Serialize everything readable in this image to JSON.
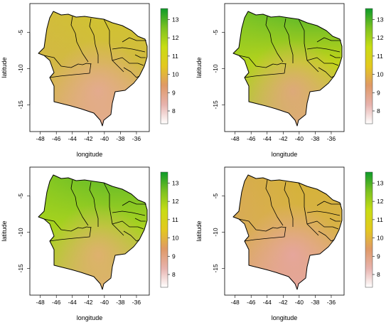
{
  "panels": [
    {
      "id": "panel-1",
      "xlabel": "longitude",
      "ylabel": "latitude",
      "x_ticks": [
        "-48",
        "-46",
        "-44",
        "-42",
        "-40",
        "-38",
        "-36"
      ],
      "y_ticks": [
        "-5",
        "-10",
        "-15"
      ],
      "legend_ticks": [
        "13",
        "12",
        "11",
        "10",
        "9",
        "8"
      ],
      "colors": {
        "north": "#d0c42e",
        "west": "#d2b548",
        "south": "#e4aa90",
        "east": "#d2bb40"
      }
    },
    {
      "id": "panel-2",
      "xlabel": "longitude",
      "ylabel": "latitude",
      "x_ticks": [
        "-48",
        "-46",
        "-44",
        "-42",
        "-40",
        "-38",
        "-36"
      ],
      "y_ticks": [
        "-5",
        "-10",
        "-15"
      ],
      "legend_ticks": [
        "13",
        "12",
        "11",
        "10",
        "9",
        "8"
      ],
      "colors": {
        "north": "#58b82a",
        "west": "#9ccf22",
        "south": "#dea87c",
        "east": "#c2d41a"
      }
    },
    {
      "id": "panel-3",
      "xlabel": "longitude",
      "ylabel": "latitude",
      "x_ticks": [
        "-48",
        "-46",
        "-44",
        "-42",
        "-40",
        "-38",
        "-36"
      ],
      "y_ticks": [
        "-5",
        "-10",
        "-15"
      ],
      "legend_ticks": [
        "13",
        "12",
        "11",
        "10",
        "9",
        "8"
      ],
      "colors": {
        "north": "#62bb28",
        "west": "#a6d31c",
        "south": "#e0b070",
        "east": "#a8d220"
      }
    },
    {
      "id": "panel-4",
      "xlabel": "longitude",
      "ylabel": "latitude",
      "x_ticks": [
        "-48",
        "-46",
        "-44",
        "-42",
        "-40",
        "-38",
        "-36"
      ],
      "y_ticks": [
        "-5",
        "-10",
        "-15"
      ],
      "legend_ticks": [
        "13",
        "12",
        "11",
        "10",
        "9",
        "8"
      ],
      "colors": {
        "north": "#d4b238",
        "west": "#daa666",
        "south": "#e6a59e",
        "east": "#d8b246"
      }
    }
  ],
  "legend": {
    "min": 7.3,
    "max": 13.6,
    "colors": [
      "#ffffff",
      "#e7b2ad",
      "#df9966",
      "#e3c81f",
      "#c8dc14",
      "#7cc121",
      "#0e9a2a"
    ]
  }
}
